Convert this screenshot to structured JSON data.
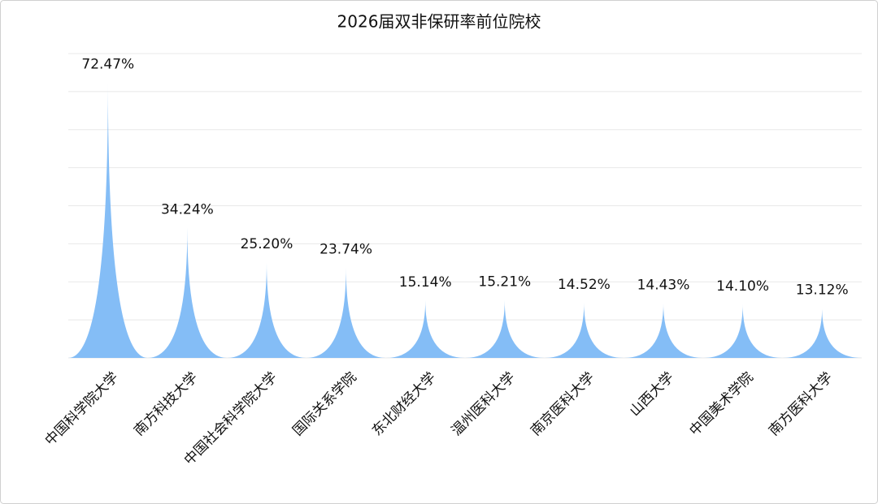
{
  "chart_data": {
    "type": "spike-bar",
    "title": "2026届双非保研率前位院校",
    "categories": [
      "中国科学院大学",
      "南方科技大学",
      "中国社会科学院大学",
      "国际关系学院",
      "东北财经大学",
      "温州医科大学",
      "南京医科大学",
      "山西大学",
      "中国美术学院",
      "南方医科大学"
    ],
    "values": [
      72.47,
      34.24,
      25.2,
      23.74,
      15.14,
      15.21,
      14.52,
      14.43,
      14.1,
      13.12
    ],
    "value_labels": [
      "72.47%",
      "34.24%",
      "25.20%",
      "23.74%",
      "15.14%",
      "15.21%",
      "14.52%",
      "14.43%",
      "14.10%",
      "13.12%"
    ],
    "color": "#84bdf6",
    "ylim": [
      0,
      80
    ],
    "yticks": [
      0,
      10,
      20,
      30,
      40,
      50,
      60,
      70,
      80
    ],
    "grid": true
  }
}
